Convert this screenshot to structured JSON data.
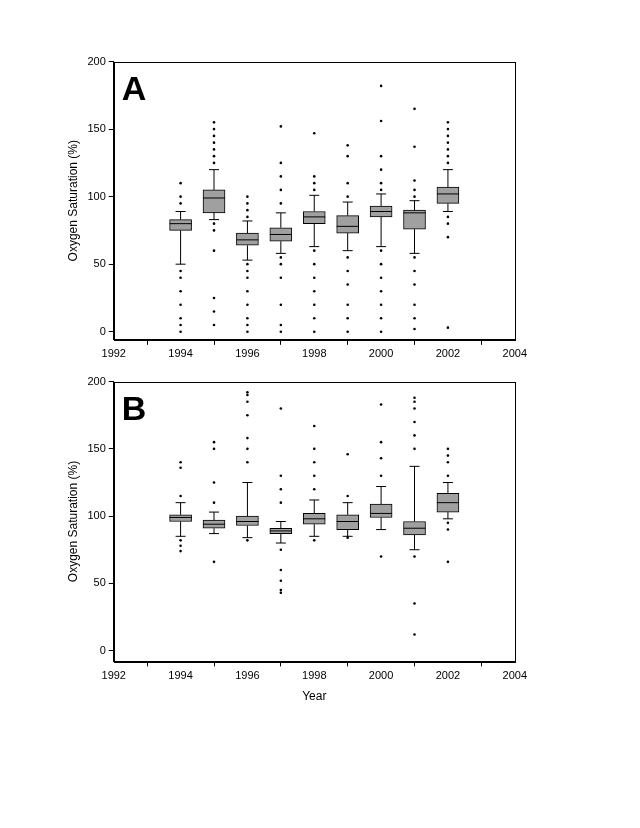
{
  "chart_data": [
    {
      "type": "box",
      "title": "A",
      "y_label": "Oxygen Saturation (%)",
      "xlim": [
        1992,
        2004
      ],
      "xticks": [
        1992,
        1994,
        1996,
        1998,
        2000,
        2002,
        2004
      ],
      "ylim": [
        -6,
        200
      ],
      "yticks": [
        0,
        50,
        100,
        150,
        200
      ],
      "grid": false,
      "color": "#a0a0a0",
      "boxes": [
        {
          "x": 1994,
          "low": 50,
          "q1": 75,
          "median": 80,
          "q3": 83,
          "high": 89,
          "outliers": [
            110,
            100,
            95,
            45,
            40,
            30,
            20,
            10,
            5,
            0
          ]
        },
        {
          "x": 1995,
          "low": 83,
          "q1": 88,
          "median": 99,
          "q3": 105,
          "high": 120,
          "outliers": [
            155,
            150,
            145,
            140,
            135,
            130,
            125,
            80,
            75,
            60,
            25,
            15,
            5
          ]
        },
        {
          "x": 1996,
          "low": 53,
          "q1": 64,
          "median": 68,
          "q3": 73,
          "high": 82,
          "outliers": [
            100,
            95,
            90,
            85,
            50,
            45,
            40,
            30,
            20,
            10,
            5,
            0
          ]
        },
        {
          "x": 1997,
          "low": 58,
          "q1": 67,
          "median": 72,
          "q3": 77,
          "high": 88,
          "outliers": [
            152,
            125,
            115,
            105,
            95,
            55,
            50,
            40,
            20,
            5,
            0
          ]
        },
        {
          "x": 1998,
          "low": 63,
          "q1": 80,
          "median": 85,
          "q3": 89,
          "high": 101,
          "outliers": [
            147,
            115,
            110,
            105,
            60,
            50,
            40,
            30,
            20,
            10,
            0
          ]
        },
        {
          "x": 1999,
          "low": 60,
          "q1": 73,
          "median": 78,
          "q3": 86,
          "high": 96,
          "outliers": [
            138,
            130,
            110,
            100,
            55,
            45,
            35,
            20,
            10,
            0
          ]
        },
        {
          "x": 2000,
          "low": 63,
          "q1": 85,
          "median": 89,
          "q3": 93,
          "high": 102,
          "outliers": [
            182,
            156,
            130,
            120,
            110,
            105,
            60,
            50,
            40,
            30,
            20,
            10,
            0
          ]
        },
        {
          "x": 2001,
          "low": 58,
          "q1": 76,
          "median": 88,
          "q3": 90,
          "high": 97,
          "outliers": [
            165,
            137,
            112,
            105,
            100,
            55,
            45,
            35,
            20,
            10,
            2
          ]
        },
        {
          "x": 2002,
          "low": 89,
          "q1": 95,
          "median": 102,
          "q3": 107,
          "high": 120,
          "outliers": [
            155,
            150,
            145,
            140,
            135,
            130,
            125,
            85,
            80,
            70,
            3
          ]
        }
      ]
    },
    {
      "type": "box",
      "title": "B",
      "y_label": "Oxygen Saturation (%)",
      "x_label": "Year",
      "xlim": [
        1992,
        2004
      ],
      "xticks": [
        1992,
        1994,
        1996,
        1998,
        2000,
        2002,
        2004
      ],
      "ylim": [
        -8,
        200
      ],
      "yticks": [
        0,
        50,
        100,
        150,
        200
      ],
      "grid": false,
      "color": "#a0a0a0",
      "boxes": [
        {
          "x": 1994,
          "low": 85,
          "q1": 96,
          "median": 99,
          "q3": 101,
          "high": 110,
          "outliers": [
            140,
            136,
            115,
            82,
            78,
            74
          ]
        },
        {
          "x": 1995,
          "low": 87,
          "q1": 91,
          "median": 94,
          "q3": 97,
          "high": 103,
          "outliers": [
            155,
            150,
            125,
            110,
            66
          ]
        },
        {
          "x": 1996,
          "low": 84,
          "q1": 93,
          "median": 96,
          "q3": 100,
          "high": 125,
          "outliers": [
            192,
            190,
            185,
            175,
            158,
            150,
            140,
            82
          ]
        },
        {
          "x": 1997,
          "low": 80,
          "q1": 87,
          "median": 89,
          "q3": 91,
          "high": 96,
          "outliers": [
            180,
            130,
            120,
            110,
            75,
            60,
            52,
            45,
            43
          ]
        },
        {
          "x": 1998,
          "low": 85,
          "q1": 94,
          "median": 98,
          "q3": 102,
          "high": 112,
          "outliers": [
            167,
            150,
            140,
            130,
            120,
            82
          ]
        },
        {
          "x": 1999,
          "low": 85,
          "q1": 90,
          "median": 96,
          "q3": 101,
          "high": 110,
          "outliers": [
            146,
            115,
            84
          ]
        },
        {
          "x": 2000,
          "low": 90,
          "q1": 99,
          "median": 102,
          "q3": 109,
          "high": 122,
          "outliers": [
            183,
            155,
            143,
            130,
            70
          ]
        },
        {
          "x": 2001,
          "low": 75,
          "q1": 86,
          "median": 91,
          "q3": 96,
          "high": 137,
          "outliers": [
            188,
            185,
            180,
            170,
            160,
            150,
            70,
            35,
            12
          ]
        },
        {
          "x": 2002,
          "low": 98,
          "q1": 103,
          "median": 110,
          "q3": 117,
          "high": 125,
          "outliers": [
            150,
            145,
            140,
            130,
            95,
            90,
            66
          ]
        }
      ]
    }
  ]
}
